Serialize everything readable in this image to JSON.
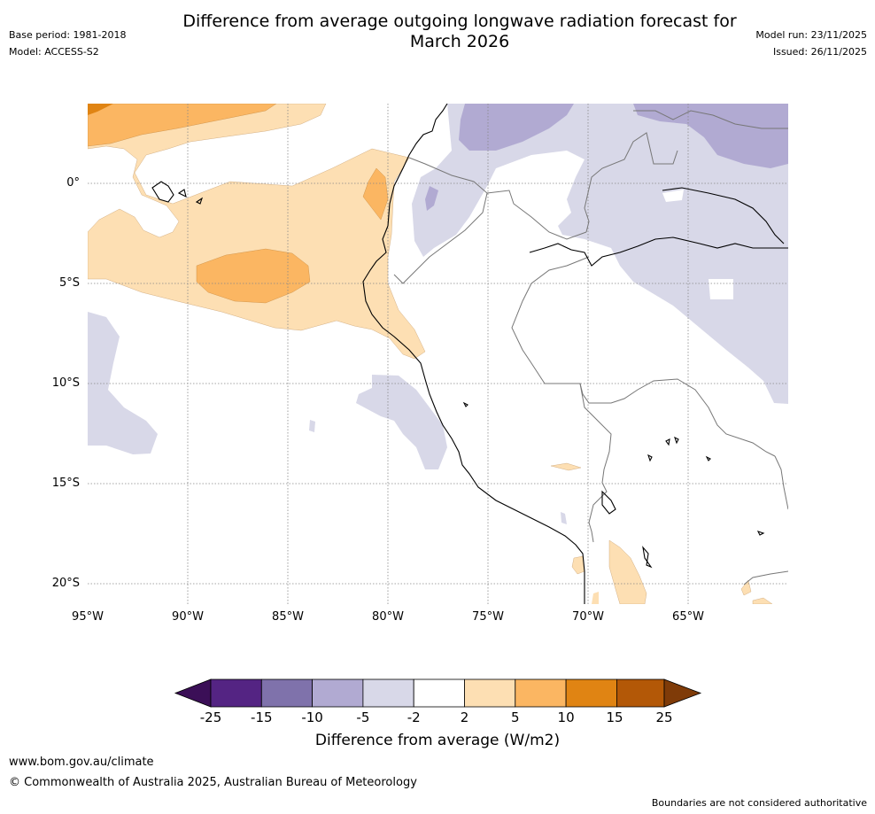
{
  "header": {
    "title_line1": "Difference from average outgoing longwave radiation forecast for",
    "title_line2": "March 2026",
    "base_period": "Base period: 1981-2018",
    "model": "Model: ACCESS-S2",
    "model_run": "Model run: 23/11/2025",
    "issued": "Issued: 26/11/2025"
  },
  "map": {
    "lat_labels": [
      "0°",
      "5°S",
      "10°S",
      "15°S",
      "20°S"
    ],
    "lon_labels": [
      "95°W",
      "90°W",
      "85°W",
      "80°W",
      "75°W",
      "70°W",
      "65°W"
    ]
  },
  "colorbar": {
    "labels": [
      "-25",
      "-15",
      "-10",
      "-5",
      "-2",
      "2",
      "5",
      "10",
      "15",
      "25"
    ],
    "title": "Difference from average (W/m2)",
    "colors": [
      "#3b0f57",
      "#542483",
      "#7f72ab",
      "#b1aad2",
      "#d8d8e8",
      "#ffffff",
      "#fddfb3",
      "#fbb662",
      "#e08413",
      "#b35807",
      "#7f3b08"
    ]
  },
  "footer": {
    "url": "www.bom.gov.au/climate",
    "copyright": "© Commonwealth of Australia 2025, Australian Bureau of Meteorology",
    "disclaimer": "Boundaries are not considered authoritative"
  }
}
